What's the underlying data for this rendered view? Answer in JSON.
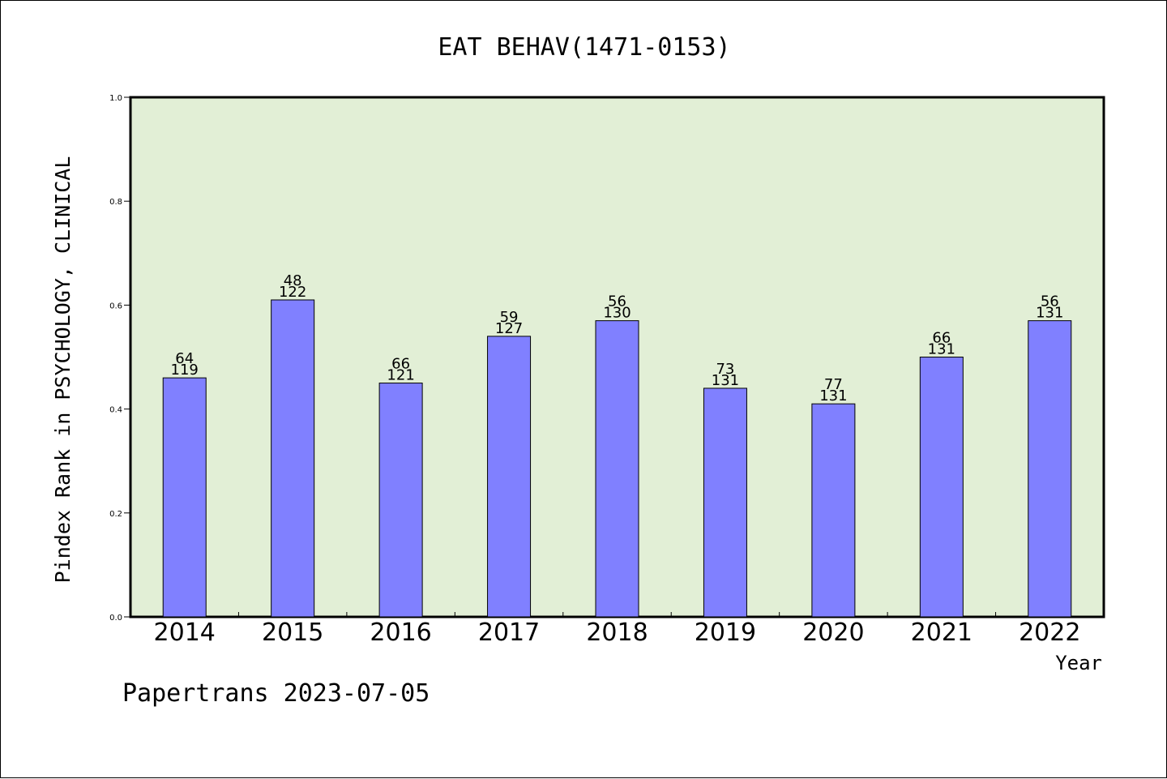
{
  "chart_data": {
    "type": "bar",
    "title": "EAT BEHAV(1471-0153)",
    "xlabel": "Year",
    "ylabel": "Pindex Rank in PSYCHOLOGY, CLINICAL",
    "footer": "Papertrans 2023-07-05",
    "ylim": [
      0,
      1.0
    ],
    "yticks": [
      "0.0",
      "0.2",
      "0.4",
      "0.6",
      "0.8",
      "1.0"
    ],
    "categories": [
      "2014",
      "2015",
      "2016",
      "2017",
      "2018",
      "2019",
      "2020",
      "2021",
      "2022"
    ],
    "values": [
      0.46,
      0.61,
      0.45,
      0.54,
      0.57,
      0.44,
      0.41,
      0.5,
      0.57
    ],
    "labels_rank": [
      "64",
      "48",
      "66",
      "59",
      "56",
      "73",
      "77",
      "66",
      "56"
    ],
    "labels_total": [
      "119",
      "122",
      "121",
      "127",
      "130",
      "131",
      "131",
      "131",
      "131"
    ],
    "grid": false,
    "colors": {
      "plot_bg": "#e2efd6",
      "bar": "#8080ff",
      "bar_edge": "#000000"
    }
  }
}
